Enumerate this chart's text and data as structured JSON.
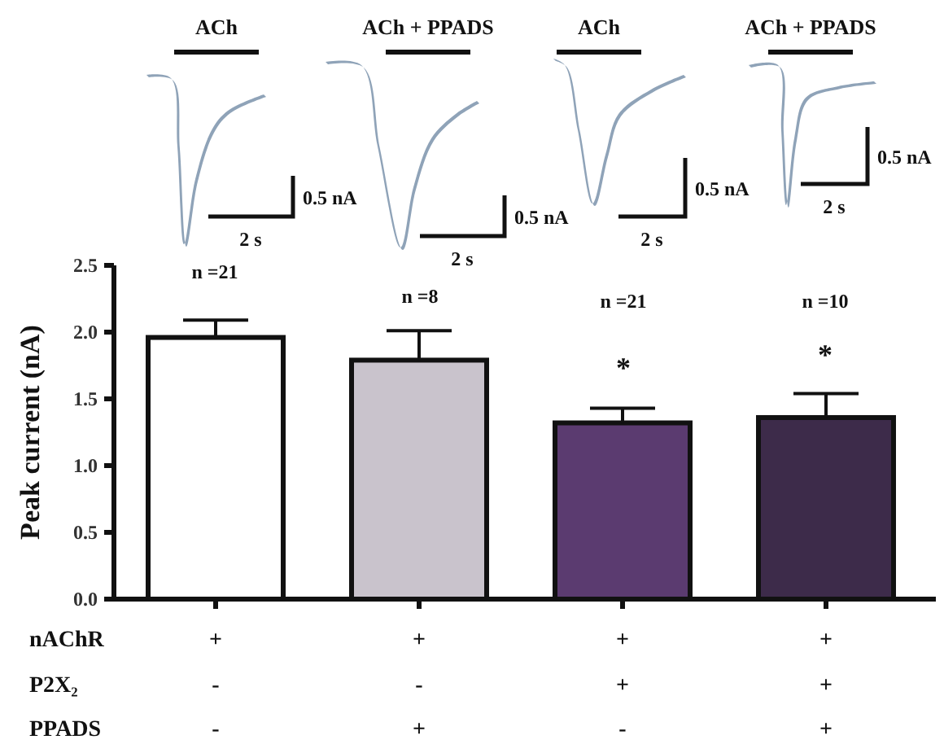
{
  "chart_data": {
    "type": "bar",
    "ylabel": "Peak current (nA)",
    "categories": [
      null,
      null,
      null,
      null
    ],
    "values": [
      1.96,
      1.79,
      1.32,
      1.36
    ],
    "errors": [
      0.13,
      0.22,
      0.11,
      0.18
    ],
    "colors": [
      "#ffffff",
      "#c9c3cc",
      "#5b3b70",
      "#3d2b4a"
    ],
    "ylim": [
      0,
      2.5
    ],
    "yticks": [
      {
        "value": 0,
        "label": "0.0"
      },
      0.5,
      {
        "value": 1,
        "label": "1.0"
      },
      1.5,
      {
        "value": 2,
        "label": "2.0"
      },
      2.5
    ],
    "annotations": [
      "ACh",
      "ACh + PPADS",
      "ACh",
      "ACh + PPADS",
      "0.5 nA",
      "0.5 nA",
      "0.5 nA",
      "0.5 nA",
      "2 s",
      "2 s",
      "2 s",
      "2 s",
      "n =21",
      "n =8",
      "n =21",
      "n =10",
      "*",
      "*",
      "nAChR",
      "P2X₂",
      "PPADS",
      "+",
      "+",
      "+",
      "+",
      "-",
      "-",
      "+",
      "+",
      "-",
      "+",
      "-",
      "+"
    ]
  }
}
